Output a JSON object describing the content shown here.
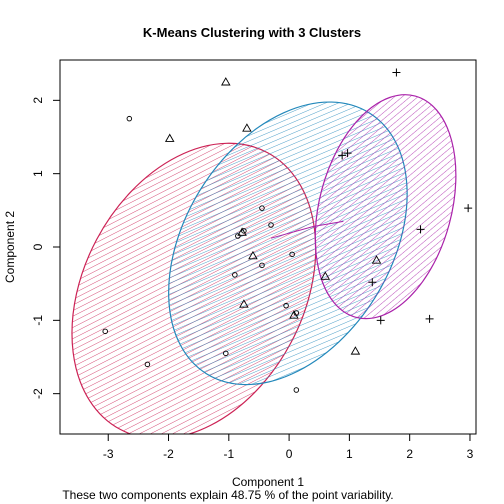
{
  "chart_data": {
    "type": "scatter",
    "title": "K-Means Clustering with 3 Clusters",
    "xlabel": "Component 1",
    "ylabel": "Component 2",
    "caption": "These two components explain 48.75 % of the point variability.",
    "xlim": [
      -3.8,
      3.1
    ],
    "ylim": [
      -2.55,
      2.55
    ],
    "xticks": [
      -3,
      -2,
      -1,
      0,
      1,
      2,
      3
    ],
    "yticks": [
      -2,
      -1,
      0,
      1,
      2
    ],
    "grid": false,
    "clusters": [
      {
        "id": 1,
        "marker": "circle",
        "color": "#cc2255",
        "ellipse": {
          "cx": -1.58,
          "cy": -0.6,
          "rx": 2.6,
          "ry": 1.5,
          "angle": 62
        },
        "points": [
          [
            -2.65,
            1.75
          ],
          [
            -3.05,
            -1.15
          ],
          [
            -2.35,
            -1.6
          ],
          [
            -1.05,
            -1.45
          ],
          [
            0.12,
            -1.95
          ],
          [
            -0.85,
            0.15
          ],
          [
            -0.45,
            0.53
          ],
          [
            -0.3,
            0.3
          ],
          [
            -0.9,
            -0.38
          ],
          [
            -0.45,
            -0.25
          ],
          [
            0.05,
            -0.1
          ],
          [
            -0.05,
            -0.8
          ],
          [
            0.12,
            -0.9
          ],
          [
            -0.75,
            0.22
          ]
        ]
      },
      {
        "id": 2,
        "marker": "triangle",
        "color": "#2288bb",
        "ellipse": {
          "cx": -0.02,
          "cy": 0.05,
          "rx": 2.55,
          "ry": 1.4,
          "angle": 58
        },
        "points": [
          [
            -1.05,
            2.25
          ],
          [
            -0.7,
            1.62
          ],
          [
            -1.98,
            1.48
          ],
          [
            -0.78,
            0.2
          ],
          [
            -0.6,
            -0.12
          ],
          [
            0.6,
            -0.4
          ],
          [
            1.45,
            -0.18
          ],
          [
            -0.75,
            -0.78
          ],
          [
            0.08,
            -0.93
          ],
          [
            1.1,
            -1.42
          ]
        ]
      },
      {
        "id": 3,
        "marker": "plus",
        "color": "#aa22aa",
        "ellipse": {
          "cx": 1.6,
          "cy": 0.55,
          "rx": 1.9,
          "ry": 0.9,
          "angle": 75
        },
        "points": [
          [
            1.78,
            2.38
          ],
          [
            0.88,
            1.25
          ],
          [
            0.97,
            1.28
          ],
          [
            2.97,
            0.53
          ],
          [
            2.18,
            0.24
          ],
          [
            1.38,
            -0.48
          ],
          [
            1.52,
            -1.0
          ],
          [
            2.33,
            -0.98
          ]
        ]
      }
    ],
    "center_links": [
      [
        -0.3,
        0.12
      ],
      [
        0.4,
        0.28
      ],
      [
        0.9,
        0.35
      ]
    ]
  }
}
